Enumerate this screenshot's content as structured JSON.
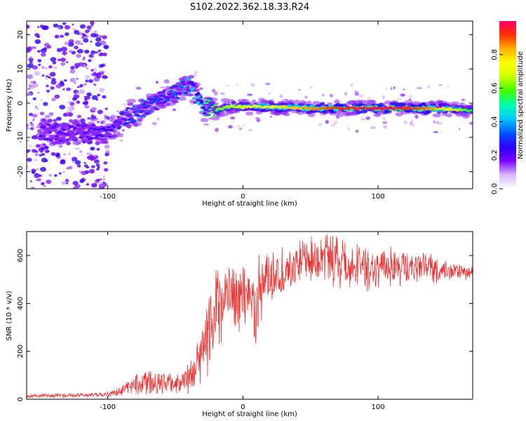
{
  "figure_title": "S102.2022.362.18.33.R24",
  "chart_data": [
    {
      "type": "heatmap",
      "xlabel": "Height of straight line (km)",
      "ylabel": "Frequency (Hz)",
      "xlim": [
        -160,
        170
      ],
      "ylim": [
        -25,
        24
      ],
      "x_ticks": [
        -100,
        0,
        100
      ],
      "y_ticks": [
        -20,
        -10,
        0,
        10,
        20
      ],
      "grid": false,
      "colorbar": {
        "label": "Normalized spectral amplitude",
        "range": [
          0,
          1
        ],
        "ticks": [
          "0.0",
          "0.2",
          "0.4",
          "0.6",
          "0.8"
        ],
        "colors": [
          "#ffffff",
          "#d9b8ff",
          "#7a00ff",
          "#2a00ff",
          "#0055ff",
          "#00c8ff",
          "#00ffb0",
          "#40ff00",
          "#c8ff00",
          "#ffff00",
          "#ffb000",
          "#ff3000",
          "#ff0070"
        ]
      },
      "ridge": {
        "x": [
          -150,
          -140,
          -120,
          -100,
          -90,
          -80,
          -70,
          -60,
          -50,
          -40,
          -30,
          -20,
          -10,
          0,
          20,
          50,
          80,
          110,
          140,
          170
        ],
        "frequency": [
          -8,
          -9,
          -8,
          -9,
          -5,
          -3,
          -1,
          2,
          3,
          6,
          -1,
          -2,
          -1,
          -1,
          -1,
          -1.5,
          -1.5,
          -1.5,
          -1.5,
          -2
        ],
        "amplitude": [
          0.2,
          0.2,
          0.2,
          0.25,
          0.3,
          0.35,
          0.35,
          0.3,
          0.35,
          0.4,
          0.5,
          0.6,
          0.65,
          0.7,
          0.75,
          0.85,
          0.95,
          1.0,
          0.85,
          0.55
        ]
      }
    },
    {
      "type": "line",
      "xlabel": "Height of straight line (km)",
      "ylabel": "SNR (10 * v/v)",
      "xlim": [
        -160,
        170
      ],
      "ylim": [
        0,
        700
      ],
      "x_ticks": [
        -100,
        0,
        100
      ],
      "y_ticks": [
        0,
        200,
        400,
        600
      ],
      "grid": false,
      "series": [
        {
          "color": "#ee3333",
          "envelope": {
            "x": [
              -160,
              -140,
              -120,
              -100,
              -90,
              -80,
              -70,
              -60,
              -50,
              -40,
              -30,
              -25,
              -20,
              -15,
              -10,
              -5,
              0,
              5,
              10,
              15,
              20,
              30,
              40,
              50,
              60,
              70,
              80,
              90,
              100,
              110,
              120,
              130,
              140,
              150,
              160,
              170
            ],
            "low": [
              5,
              5,
              8,
              10,
              15,
              20,
              20,
              15,
              10,
              20,
              50,
              100,
              180,
              250,
              300,
              260,
              300,
              330,
              200,
              360,
              400,
              440,
              460,
              480,
              470,
              460,
              450,
              450,
              460,
              470,
              470,
              480,
              480,
              490,
              490,
              500
            ],
            "high": [
              20,
              25,
              25,
              30,
              60,
              110,
              140,
              120,
              100,
              150,
              300,
              450,
              600,
              620,
              570,
              540,
              560,
              560,
              600,
              620,
              640,
              650,
              660,
              680,
              690,
              680,
              670,
              660,
              650,
              640,
              630,
              620,
              610,
              580,
              570,
              560
            ]
          }
        }
      ]
    }
  ]
}
